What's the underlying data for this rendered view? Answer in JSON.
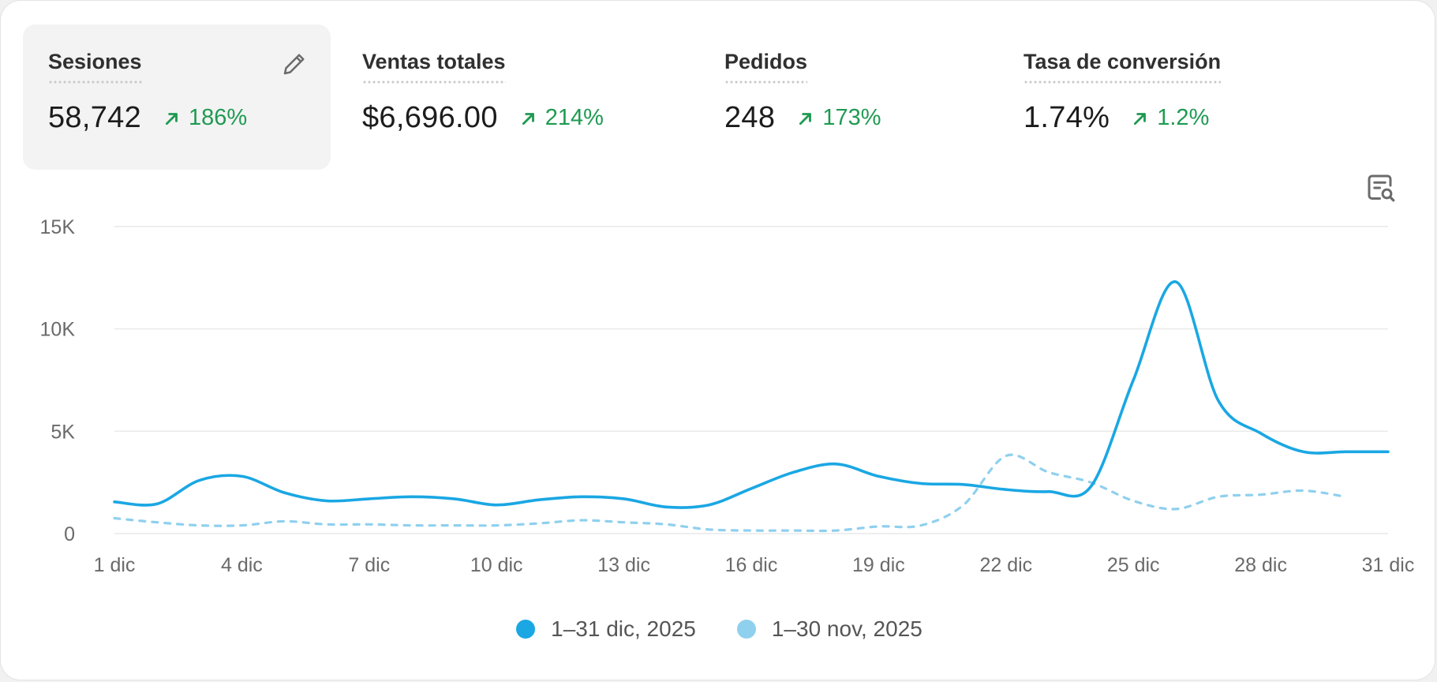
{
  "metrics": [
    {
      "label": "Sesiones",
      "value": "58,742",
      "change": "186%"
    },
    {
      "label": "Ventas totales",
      "value": "$6,696.00",
      "change": "214%"
    },
    {
      "label": "Pedidos",
      "value": "248",
      "change": "173%"
    },
    {
      "label": "Tasa de conversión",
      "value": "1.74%",
      "change": "1.2%"
    }
  ],
  "icons": {
    "edit": "pencil-icon",
    "explore": "report-search-icon",
    "trend": "arrow-up-right-icon"
  },
  "colors": {
    "current": "#1aa7e3",
    "previous": "#8fd0ee",
    "positive": "#1f9a52",
    "selected_bg": "#f3f3f3"
  },
  "chart_data": {
    "type": "line",
    "categories": [
      "1 dic",
      "2 dic",
      "3 dic",
      "4 dic",
      "5 dic",
      "6 dic",
      "7 dic",
      "8 dic",
      "9 dic",
      "10 dic",
      "11 dic",
      "12 dic",
      "13 dic",
      "14 dic",
      "15 dic",
      "16 dic",
      "17 dic",
      "18 dic",
      "19 dic",
      "20 dic",
      "21 dic",
      "22 dic",
      "23 dic",
      "24 dic",
      "25 dic",
      "26 dic",
      "27 dic",
      "28 dic",
      "29 dic",
      "30 dic",
      "31 dic"
    ],
    "tick_labels": [
      "1 dic",
      "4 dic",
      "7 dic",
      "10 dic",
      "13 dic",
      "16 dic",
      "19 dic",
      "22 dic",
      "25 dic",
      "28 dic",
      "31 dic"
    ],
    "y_ticks": [
      "0",
      "5K",
      "10K",
      "15K"
    ],
    "ylim": [
      0,
      15000
    ],
    "grid": true,
    "legend_position": "bottom-center",
    "series": [
      {
        "name": "1–31 dic, 2025",
        "style": "solid",
        "values": [
          1550,
          1450,
          2600,
          2800,
          2000,
          1600,
          1700,
          1800,
          1700,
          1400,
          1650,
          1800,
          1700,
          1300,
          1400,
          2200,
          3000,
          3400,
          2800,
          2450,
          2400,
          2150,
          2050,
          2300,
          7500,
          12300,
          6500,
          4900,
          4000,
          4000,
          4000
        ]
      },
      {
        "name": "1–30 nov, 2025",
        "style": "dashed",
        "values": [
          750,
          550,
          400,
          400,
          600,
          450,
          450,
          400,
          400,
          400,
          500,
          650,
          550,
          450,
          200,
          150,
          150,
          150,
          350,
          400,
          1400,
          3800,
          3000,
          2500,
          1600,
          1200,
          1800,
          1900,
          2100,
          1800,
          null
        ]
      }
    ]
  }
}
